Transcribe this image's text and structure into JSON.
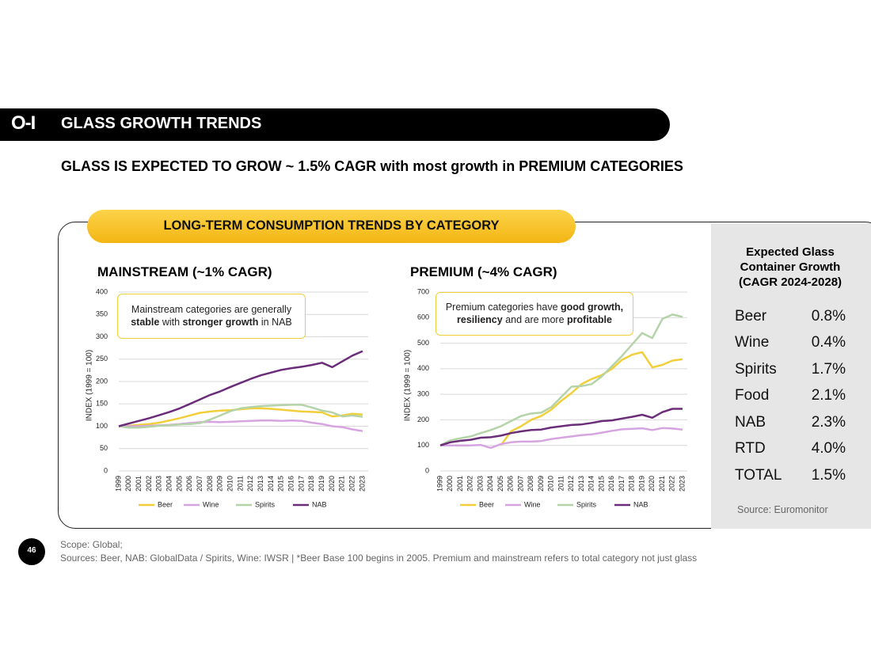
{
  "header": {
    "logo": "O-I",
    "title": "GLASS GROWTH TRENDS",
    "subtitle": "GLASS IS EXPECTED TO GROW ~ 1.5% CAGR with most growth in PREMIUM CATEGORIES"
  },
  "panel_title": "LONG-TERM CONSUMPTION TRENDS BY CATEGORY",
  "chart_data": [
    {
      "type": "line",
      "title": "MAINSTREAM (~1% CAGR)",
      "y_label": "INDEX (1999 = 100)",
      "annotation": [
        {
          "text": "Mainstream categories are generally ",
          "bold": false
        },
        {
          "text": "stable",
          "bold": true
        },
        {
          "text": " with ",
          "bold": false
        },
        {
          "text": "stronger growth",
          "bold": true
        },
        {
          "text": " in NAB",
          "bold": false
        }
      ],
      "categories": [
        "1999",
        "2000",
        "2001",
        "2002",
        "2003",
        "2004",
        "2005",
        "2006",
        "2007",
        "2008",
        "2009",
        "2010",
        "2011",
        "2012",
        "2013",
        "2014",
        "2015",
        "2016",
        "2017",
        "2018",
        "2019",
        "2020",
        "2021",
        "2022",
        "2023"
      ],
      "ylim": [
        0,
        400
      ],
      "yticks": [
        0,
        50,
        100,
        150,
        200,
        250,
        300,
        350,
        400
      ],
      "grid": true,
      "series": [
        {
          "name": "Beer",
          "color": "#f2cf3a",
          "values": [
            100,
            101,
            103,
            105,
            108,
            113,
            118,
            124,
            130,
            133,
            135,
            136,
            138,
            140,
            140,
            139,
            137,
            135,
            133,
            132,
            131,
            122,
            124,
            128,
            126
          ]
        },
        {
          "name": "Wine",
          "color": "#d6a4e0",
          "values": [
            100,
            100,
            100,
            101,
            102,
            103,
            105,
            107,
            109,
            110,
            109,
            110,
            111,
            112,
            113,
            113,
            112,
            113,
            112,
            108,
            105,
            100,
            98,
            93,
            89
          ]
        },
        {
          "name": "Spirits",
          "color": "#b5d3a8",
          "values": [
            100,
            97,
            97,
            99,
            101,
            102,
            104,
            105,
            107,
            115,
            124,
            134,
            140,
            143,
            145,
            146,
            147,
            148,
            148,
            142,
            135,
            131,
            122,
            124,
            121
          ]
        },
        {
          "name": "NAB",
          "color": "#6b2d7a",
          "values": [
            100,
            106,
            112,
            118,
            125,
            132,
            140,
            150,
            160,
            170,
            178,
            188,
            197,
            206,
            214,
            220,
            226,
            230,
            233,
            237,
            242,
            232,
            245,
            258,
            268
          ]
        }
      ]
    },
    {
      "type": "line",
      "title": "PREMIUM (~4% CAGR)",
      "y_label": "INDEX (1999 = 100)",
      "annotation": [
        {
          "text": "Premium categories have ",
          "bold": false
        },
        {
          "text": "good growth, resiliency",
          "bold": true
        },
        {
          "text": " and are more ",
          "bold": false
        },
        {
          "text": "profitable",
          "bold": true
        }
      ],
      "categories": [
        "1999",
        "2000",
        "2001",
        "2002",
        "2003",
        "2004",
        "2005",
        "2006",
        "2007",
        "2008",
        "2009",
        "2010",
        "2011",
        "2012",
        "2013",
        "2014",
        "2015",
        "2016",
        "2017",
        "2018",
        "2019",
        "2020",
        "2021",
        "2022",
        "2023"
      ],
      "ylim": [
        0,
        700
      ],
      "yticks": [
        0,
        100,
        200,
        300,
        400,
        500,
        600,
        700
      ],
      "grid": true,
      "series": [
        {
          "name": "Beer",
          "color": "#f2cf3a",
          "values": [
            null,
            null,
            null,
            null,
            null,
            null,
            100,
            155,
            175,
            200,
            215,
            240,
            275,
            305,
            340,
            360,
            375,
            400,
            435,
            455,
            465,
            405,
            415,
            432,
            437
          ]
        },
        {
          "name": "Wine",
          "color": "#d6a4e0",
          "values": [
            100,
            100,
            100,
            100,
            102,
            90,
            105,
            112,
            115,
            115,
            117,
            125,
            130,
            135,
            140,
            143,
            150,
            157,
            163,
            165,
            167,
            160,
            168,
            166,
            162
          ]
        },
        {
          "name": "Spirits",
          "color": "#b5d3a8",
          "values": [
            100,
            120,
            128,
            135,
            148,
            160,
            175,
            195,
            215,
            225,
            228,
            250,
            290,
            330,
            332,
            340,
            370,
            410,
            450,
            495,
            540,
            520,
            595,
            612,
            603
          ]
        },
        {
          "name": "NAB",
          "color": "#6b2d7a",
          "values": [
            100,
            112,
            118,
            122,
            130,
            132,
            138,
            148,
            155,
            160,
            162,
            170,
            175,
            180,
            182,
            188,
            195,
            198,
            205,
            212,
            220,
            208,
            230,
            243,
            243
          ]
        }
      ]
    }
  ],
  "table": {
    "title": "Expected Glass Container Growth (CAGR 2024-2028)",
    "rows": [
      [
        "Beer",
        "0.8%"
      ],
      [
        "Wine",
        "0.4%"
      ],
      [
        "Spirits",
        "1.7%"
      ],
      [
        "Food",
        "2.1%"
      ],
      [
        "NAB",
        "2.3%"
      ],
      [
        "RTD",
        "4.0%"
      ],
      [
        "TOTAL",
        "1.5%"
      ]
    ],
    "source": "Source: Euromonitor"
  },
  "footer": {
    "page": "46",
    "scope": "Scope: Global;",
    "sources": "Sources: Beer, NAB: GlobalData / Spirits, Wine: IWSR | *Beer Base 100 begins in 2005. Premium and mainstream refers to total category not just glass"
  }
}
